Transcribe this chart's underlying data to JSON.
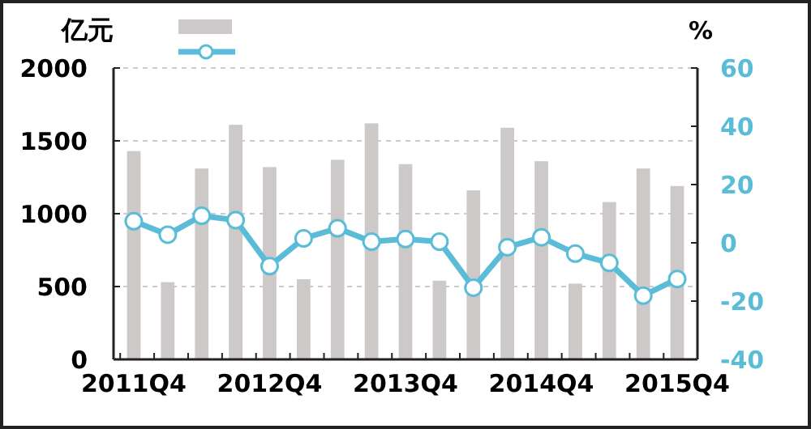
{
  "chart_data": {
    "type": "bar",
    "ylabel": "亿元",
    "y2label": "%",
    "categories": [
      "2011Q4",
      null,
      null,
      null,
      "2012Q4",
      null,
      null,
      null,
      "2013Q4",
      null,
      null,
      null,
      "2014Q4",
      null,
      null,
      null,
      "2015Q4"
    ],
    "series": [
      {
        "color": "#cdc9c9",
        "values": [
          1430,
          530,
          1310,
          1610,
          1320,
          550,
          1370,
          1620,
          1340,
          540,
          1160,
          1590,
          1360,
          520,
          1080,
          1310,
          1190
        ]
      },
      {
        "type": "line",
        "axis": "y2",
        "color": "#5bbcd8",
        "marker": "circle",
        "values": [
          7.4,
          2.8,
          9.3,
          7.8,
          -8,
          1.5,
          5,
          0.4,
          1.3,
          0.4,
          -15.4,
          -1.5,
          1.9,
          -3.7,
          -6.9,
          -18.1,
          -12.4
        ]
      }
    ],
    "ylim": [
      0,
      2000
    ],
    "yticks": [
      0,
      500,
      1000,
      1500,
      2000
    ],
    "y2lim": [
      -40,
      60
    ],
    "y2ticks": [
      -40,
      -20,
      0,
      20,
      40,
      60
    ],
    "grid": "y"
  }
}
